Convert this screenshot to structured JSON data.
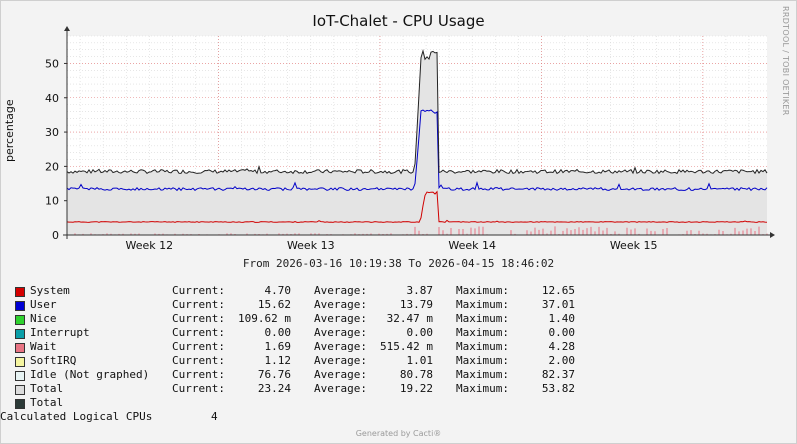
{
  "chart_data": {
    "type": "area",
    "title": "IoT-Chalet - CPU Usage",
    "ylabel": "percentage",
    "ylim": [
      0,
      58
    ],
    "yticks": [
      0,
      10,
      20,
      30,
      40,
      50
    ],
    "xlim": [
      "2026-03-16 10:19:38",
      "2026-04-15 18:46:02"
    ],
    "x_tick_labels": [
      {
        "label": "Week 12",
        "date": "2026-03-20"
      },
      {
        "label": "Week 13",
        "date": "2026-03-27"
      },
      {
        "label": "Week 14",
        "date": "2026-04-03"
      },
      {
        "label": "Week 15",
        "date": "2026-04-10"
      }
    ],
    "week_boundaries": [
      "2026-03-23",
      "2026-03-30",
      "2026-04-06",
      "2026-04-13"
    ],
    "grid": true,
    "series": [
      {
        "name": "User",
        "color": "#0000c8",
        "baseline": 13.4,
        "peak": 37.01,
        "spike": {
          "start": "2026-03-31 12:00",
          "end": "2026-04-01 12:00"
        }
      },
      {
        "name": "System",
        "color": "#d00000",
        "baseline": 3.8,
        "peak": 12.65,
        "spike": {
          "start": "2026-03-31 18:00",
          "end": "2026-04-01 12:00"
        }
      },
      {
        "name": "Total",
        "color": "#222222",
        "baseline": 18.5,
        "peak": 53.82,
        "spike": {
          "start": "2026-03-31 12:00",
          "end": "2026-04-01 12:00"
        }
      }
    ],
    "from_to_text": "From 2026-03-16 10:19:38 To 2026-04-15 18:46:02"
  },
  "legend": [
    {
      "name": "System",
      "color": "#d40000",
      "current": "4.70",
      "average": "3.87",
      "maximum": "12.65"
    },
    {
      "name": "User",
      "color": "#0000d4",
      "current": "15.62",
      "average": "13.79",
      "maximum": "37.01"
    },
    {
      "name": "Nice",
      "color": "#2ed12e",
      "current": "109.62 m",
      "average": "32.47 m",
      "maximum": "1.40"
    },
    {
      "name": "Interrupt",
      "color": "#0a9ea8",
      "current": "0.00",
      "average": "0.00",
      "maximum": "0.00"
    },
    {
      "name": "Wait",
      "color": "#e87484",
      "current": "1.69",
      "average": "515.42 m",
      "maximum": "4.28"
    },
    {
      "name": "SoftIRQ",
      "color": "#f5f5a0",
      "current": "1.12",
      "average": "1.01",
      "maximum": "2.00"
    },
    {
      "name": "Idle (Not graphed)",
      "color": "#e8f4f4",
      "current": "76.76",
      "average": "80.78",
      "maximum": "82.37"
    },
    {
      "name": "Total",
      "color": "#dcdcdc",
      "current": "23.24",
      "average": "19.22",
      "maximum": "53.82"
    },
    {
      "name": "Total",
      "color": "#2c3a38",
      "current": "",
      "average": "",
      "maximum": ""
    }
  ],
  "labels": {
    "current": "Current:",
    "average": "Average:",
    "maximum": "Maximum:"
  },
  "calc": {
    "label": "Calculated Logical CPUs",
    "value": "4"
  },
  "side_text": "RRDTOOL / TOBI OETIKER",
  "footer": "Generated by Cacti®"
}
